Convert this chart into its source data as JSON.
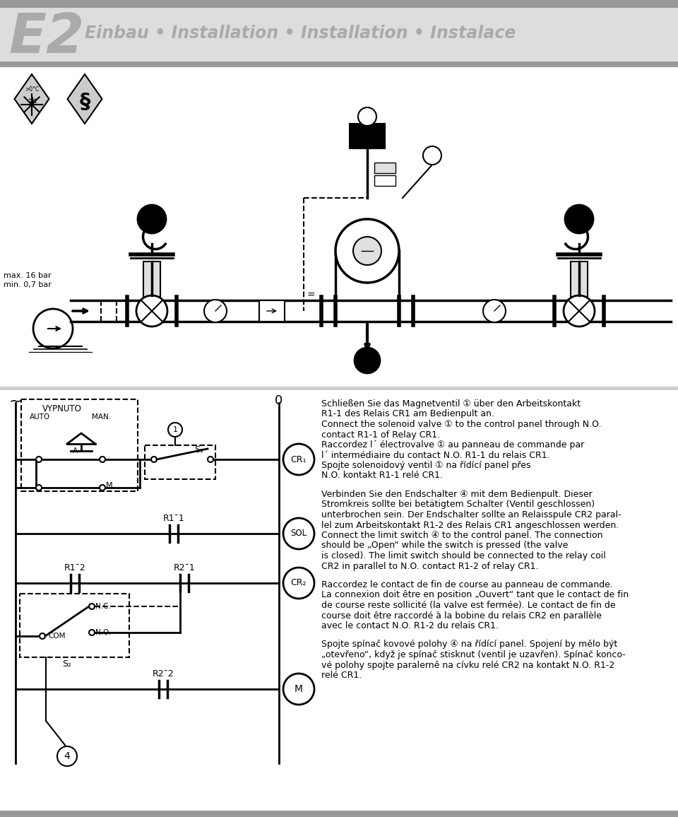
{
  "bg_color": "#ffffff",
  "header_bar_color": "#999999",
  "e2_color": "#aaaaaa",
  "subtitle_color": "#aaaaaa",
  "text_block1_lines": [
    "Schließen Sie das Magnetventil ① über den Arbeitskontakt",
    "R1-1 des Relais CR1 am Bedienpult an.",
    "Connect the solenoid valve ① to the control panel through N.O.",
    "contact R1-1 of Relay CR1.",
    "Raccordez l´ électrovalve ① au panneau de commande par",
    "l´ intermédiaire du contact N.O. R1-1 du relais CR1.",
    "Spojte solenoidový ventil ① na řídící panel přes",
    "N.O. kontakt R1-1 relé CR1."
  ],
  "text_block2_lines": [
    "Verbinden Sie den Endschalter ④ mit dem Bedienpult. Dieser",
    "Stromkreis sollte bei betätigtem Schalter (Ventil geschlossen)",
    "unterbrochen sein. Der Endschalter sollte an Relaisspule CR2 paral-",
    "lel zum Arbeitskontakt R1-2 des Relais CR1 angeschlossen werden.",
    "Connect the limit switch ④ to the control panel. The connection",
    "should be „Open“ while the switch is pressed (the valve",
    "is closed). The limit switch should be connected to the relay coil",
    "CR2 in parallel to N.O. contact R1-2 of relay CR1."
  ],
  "text_block3_lines": [
    "Raccordez le contact de fin de course au panneau de commande.",
    "La connexion doit être en position „Ouvert“ tant que le contact de fin",
    "de course reste sollicité (la valve est fermée). Le contact de fin de",
    "course doit être raccordé à la bobine du relais CR2 en parallèle",
    "avec le contact N.O. R1-2 du relais CR1."
  ],
  "text_block4_lines": [
    "Spojte spínač kovové polohy ④ na řídící panel. Spojení by mělo být",
    "„otevřeno“, když je spínač stisknut (ventil je uzavřen). Spínač konco-",
    "vé polohy spojte paralerně na cívku relé CR2 na kontakt N.O. R1-2",
    "relé CR1."
  ]
}
